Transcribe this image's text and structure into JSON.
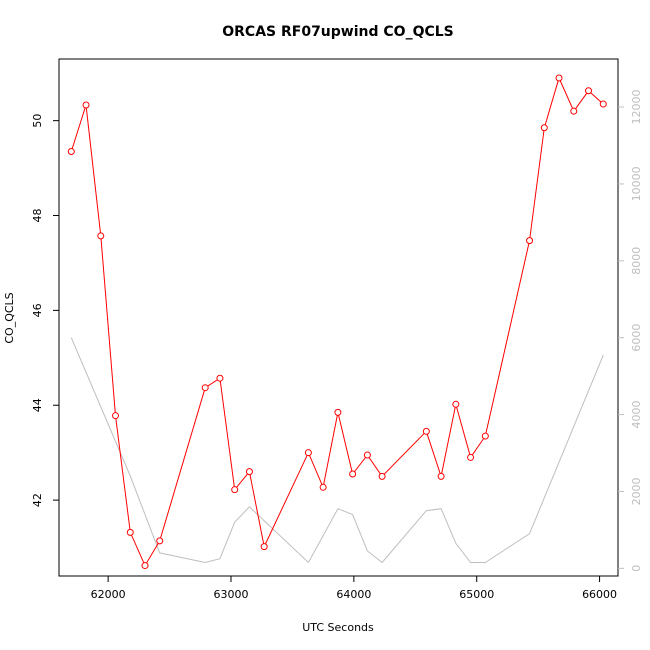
{
  "chart_data": {
    "type": "line",
    "title": "ORCAS RF07upwind CO_QCLS",
    "xlabel": "UTC Seconds",
    "ylabel": "CO_QCLS",
    "xlim": [
      61600,
      66150
    ],
    "ylim": [
      40.4,
      51.3
    ],
    "y2lim": [
      -200,
      13250
    ],
    "x_ticks": [
      62000,
      63000,
      64000,
      65000,
      66000
    ],
    "y_ticks": [
      42,
      44,
      46,
      48,
      50
    ],
    "y2_ticks": [
      0,
      2000,
      4000,
      6000,
      8000,
      10000,
      12000
    ],
    "grid": false,
    "series": [
      {
        "axis": "left",
        "color": "#ff0000",
        "marker": "open-circle",
        "x": [
          61700,
          61820,
          61940,
          62060,
          62180,
          62300,
          62420,
          62790,
          62910,
          63030,
          63150,
          63270,
          63630,
          63750,
          63870,
          63990,
          64110,
          64230,
          64590,
          64710,
          64830,
          64950,
          65070,
          65430,
          65550,
          65670,
          65790,
          65910,
          66030
        ],
        "values": [
          49.35,
          50.33,
          47.57,
          43.78,
          41.32,
          40.62,
          41.14,
          44.37,
          44.57,
          42.22,
          42.6,
          41.02,
          43.0,
          42.27,
          43.85,
          42.55,
          42.95,
          42.5,
          43.45,
          42.5,
          44.02,
          42.9,
          43.35,
          47.47,
          49.85,
          50.9,
          50.2,
          50.63,
          50.35
        ]
      },
      {
        "axis": "right",
        "color": "#bebebe",
        "marker": "none",
        "x": [
          61700,
          62180,
          62420,
          62790,
          62910,
          63030,
          63150,
          63630,
          63870,
          63990,
          64110,
          64230,
          64590,
          64710,
          64830,
          64950,
          65070,
          65430,
          66030
        ],
        "values": [
          6000,
          2400,
          400,
          150,
          250,
          1200,
          1600,
          150,
          1550,
          1400,
          450,
          150,
          1500,
          1550,
          650,
          150,
          150,
          900,
          5550
        ]
      }
    ]
  }
}
